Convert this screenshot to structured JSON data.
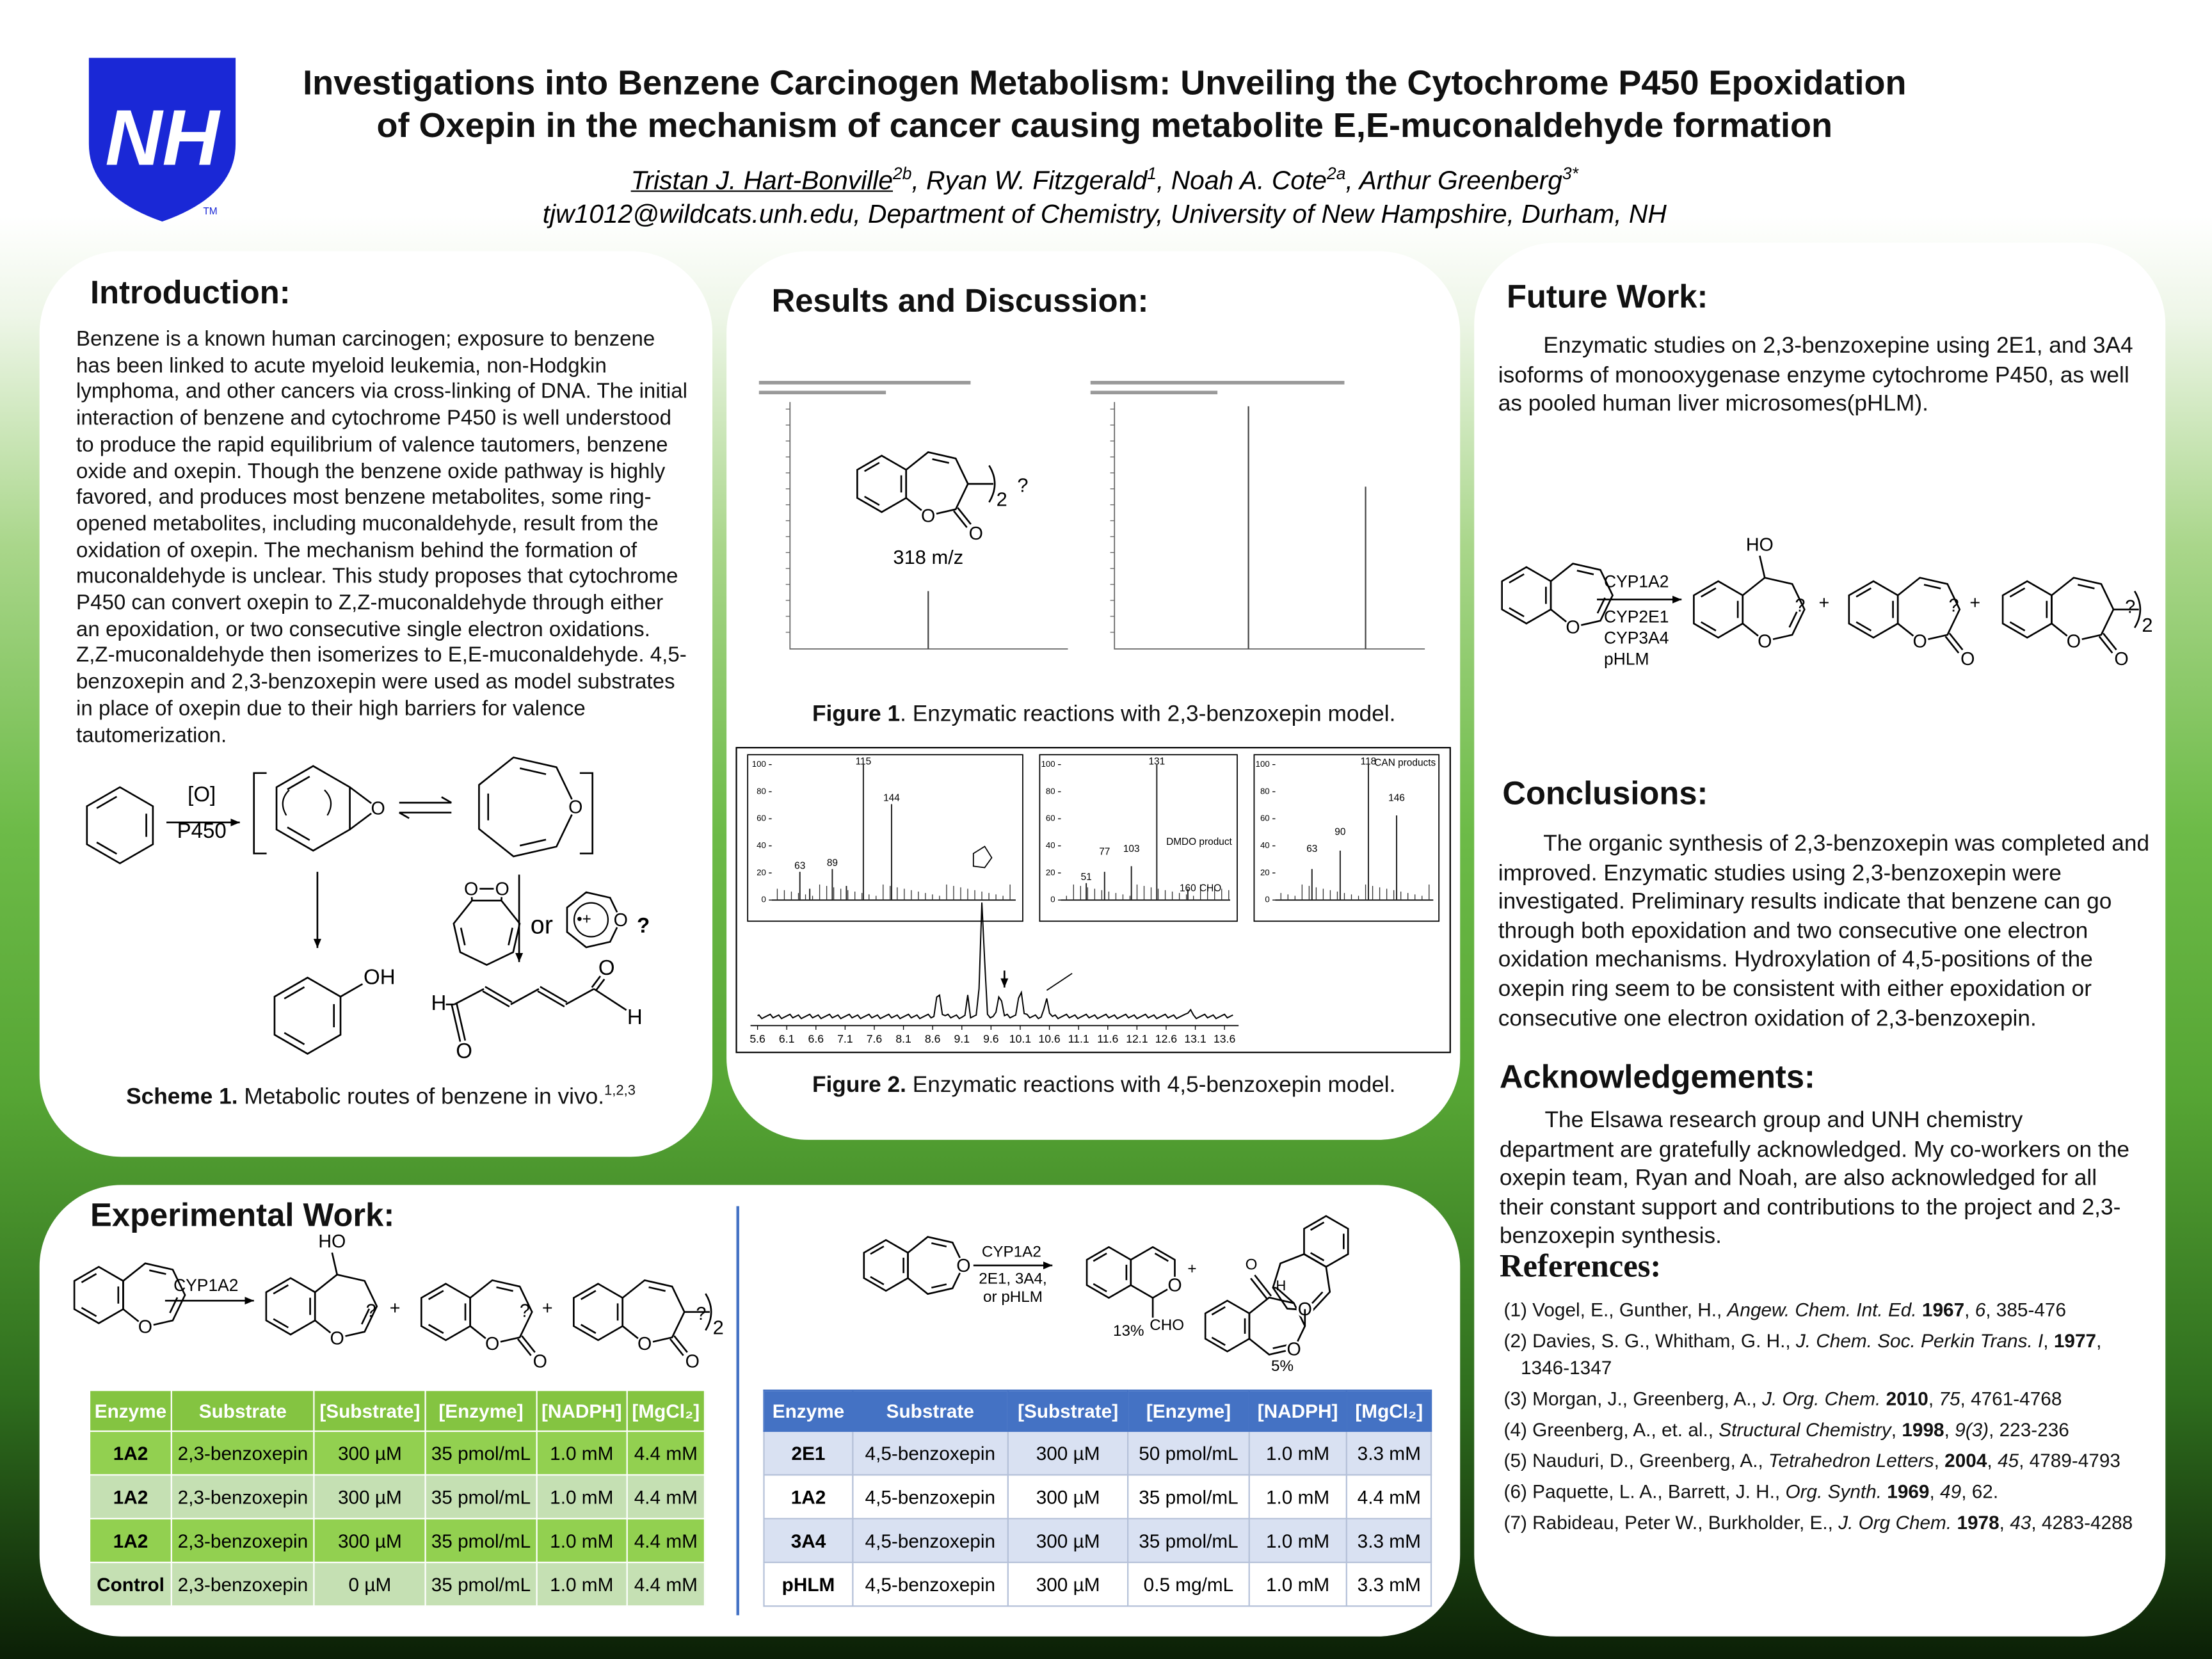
{
  "header": {
    "logo": "NH",
    "logo_tm": "TM",
    "title": [
      "Investigations into Benzene Carcinogen Metabolism: Unveiling the Cytochrome P450 Epoxidation",
      "of Oxepin in the mechanism of cancer causing metabolite E,E-muconaldehyde formation"
    ],
    "authors": [
      {
        "name": "Tristan J. Hart-Bonville",
        "sup": "2b"
      },
      {
        "name": ", Ryan W. Fitzgerald",
        "sup": "1"
      },
      {
        "name": ", Noah A. Cote",
        "sup": "2a"
      },
      {
        "name": ", Arthur Greenberg",
        "sup": "3*"
      }
    ],
    "affiliation": "tjw1012@wildcats.unh.edu, Department of Chemistry, University of New Hampshire, Durham, NH"
  },
  "introduction": {
    "heading": "Introduction:",
    "body": "Benzene is a known human carcinogen; exposure to benzene has been linked to acute myeloid leukemia, non-Hodgkin lymphoma, and other cancers via cross-linking of DNA. The initial interaction of benzene and cytochrome P450 is well understood to produce the rapid equilibrium of valence tautomers, benzene oxide and oxepin. Though the benzene oxide pathway is highly favored, and produces most benzene metabolites, some ring-opened metabolites, including muconaldehyde, result from the oxidation of oxepin. The mechanism behind the formation of muconaldehyde is unclear. This study proposes that cytochrome P450 can convert oxepin to Z,Z-muconaldehyde through either an epoxidation, or two consecutive single electron oxidations. Z,Z-muconaldehyde then isomerizes to E,E-muconaldehyde. 4,5-benzoxepin and 2,3-benzoxepin were used as model substrates in place of oxepin due to their high barriers for valence tautomerization.",
    "scheme": {
      "labels": [
        "[O]",
        "P450",
        "O",
        "O",
        "OH",
        "O",
        "O",
        "or",
        "•+",
        "O",
        "?",
        "H",
        "O",
        "O",
        "H"
      ]
    },
    "caption": {
      "label": "Scheme 1.",
      "text": " Metabolic routes of benzene in vivo.",
      "sup": "1,2,3"
    }
  },
  "results": {
    "heading": "Results and Discussion:",
    "figure1": {
      "labels": [
        "O",
        "O",
        "2",
        "?",
        "318 m/z"
      ],
      "caption": {
        "label": "Figure 1",
        "text": ". Enzymatic reactions with 2,3-benzoxepin model."
      }
    },
    "figure2": {
      "inset_yticks": [
        0,
        20,
        40,
        60,
        80,
        100
      ],
      "inset1_labels": [
        "115",
        "144",
        "63",
        "89"
      ],
      "inset2_labels": [
        "131",
        "51",
        "77",
        "103",
        "DMDO product",
        "160",
        "CHO"
      ],
      "inset3_labels": [
        "118",
        "CAN products",
        "63",
        "90",
        "146"
      ],
      "xlim": [
        5.6,
        13.6
      ],
      "xticks": [
        5.6,
        6.1,
        6.6,
        7.1,
        7.6,
        8.1,
        8.6,
        9.1,
        9.6,
        10.1,
        10.6,
        11.1,
        11.6,
        12.1,
        12.6,
        13.1,
        13.6
      ],
      "caption": {
        "label": "Figure 2.",
        "text": " Enzymatic reactions with 4,5-benzoxepin model."
      }
    }
  },
  "future_work": {
    "heading": "Future Work:",
    "body": "Enzymatic studies on 2,3-benzoxepine using 2E1, and 3A4 isoforms of monooxygenase enzyme cytochrome P450, as well as pooled human liver microsomes(pHLM).",
    "scheme": {
      "labels": [
        "O",
        "CYP1A2",
        "CYP2E1",
        "CYP3A4",
        "pHLM",
        "HO",
        "O",
        "?",
        "+",
        "O",
        "O",
        "?",
        "+",
        "O",
        "O",
        "2",
        "?"
      ]
    }
  },
  "conclusions": {
    "heading": "Conclusions:",
    "body": "The organic synthesis of 2,3-benzoxepin was completed and improved. Enzymatic studies using 2,3-benzoxepin were investigated. Preliminary results indicate that benzene can go through both epoxidation and two consecutive one electron oxidation mechanisms. Hydroxylation of 4,5-positions of the oxepin ring seem to be consistent with either epoxidation or consecutive one electron oxidation of 2,3-benzoxepin."
  },
  "acknowledgements": {
    "heading": "Acknowledgements:",
    "body": "The Elsawa research group and UNH chemistry department are gratefully acknowledged. My co-workers on the oxepin team, Ryan and Noah, are also acknowledged for all their constant support and contributions to the project and 2,3-benzoxepin synthesis."
  },
  "references": {
    "heading": "References:",
    "items": [
      [
        {
          "t": "(1) Vogel, E., Gunther, H., "
        },
        {
          "t": "Angew. Chem. Int. Ed.",
          "s": "i"
        },
        {
          "t": " "
        },
        {
          "t": "1967",
          "s": "b"
        },
        {
          "t": ", "
        },
        {
          "t": "6",
          "s": "i"
        },
        {
          "t": ", 385-476"
        }
      ],
      [
        {
          "t": "(2) Davies, S. G., Whitham, G. H., "
        },
        {
          "t": "J. Chem. Soc. Perkin Trans. I",
          "s": "i"
        },
        {
          "t": ", "
        },
        {
          "t": "1977",
          "s": "b"
        },
        {
          "t": ", 1346-1347"
        }
      ],
      [
        {
          "t": "(3) Morgan, J., Greenberg, A., "
        },
        {
          "t": "J. Org. Chem.",
          "s": "i"
        },
        {
          "t": " "
        },
        {
          "t": "2010",
          "s": "b"
        },
        {
          "t": ", "
        },
        {
          "t": "75",
          "s": "i"
        },
        {
          "t": ", 4761-4768"
        }
      ],
      [
        {
          "t": "(4) Greenberg, A., et. al., "
        },
        {
          "t": "Structural Chemistry",
          "s": "i"
        },
        {
          "t": ", "
        },
        {
          "t": "1998",
          "s": "b"
        },
        {
          "t": ", "
        },
        {
          "t": "9(3)",
          "s": "i"
        },
        {
          "t": ", 223-236"
        }
      ],
      [
        {
          "t": "(5) Nauduri, D., Greenberg, A., "
        },
        {
          "t": "Tetrahedron Letters",
          "s": "i"
        },
        {
          "t": ", "
        },
        {
          "t": "2004",
          "s": "b"
        },
        {
          "t": ", "
        },
        {
          "t": "45",
          "s": "i"
        },
        {
          "t": ", 4789-4793"
        }
      ],
      [
        {
          "t": "(6) Paquette, L. A., Barrett, J. H.,  "
        },
        {
          "t": "Org. Synth.",
          "s": "i"
        },
        {
          "t": " "
        },
        {
          "t": "1969",
          "s": "b"
        },
        {
          "t": ", "
        },
        {
          "t": "49",
          "s": "i"
        },
        {
          "t": ", 62."
        }
      ],
      [
        {
          "t": "(7) Rabideau, Peter W., Burkholder, E.,  "
        },
        {
          "t": "J. Org Chem.",
          "s": "i"
        },
        {
          "t": " "
        },
        {
          "t": "1978",
          "s": "b"
        },
        {
          "t": ", "
        },
        {
          "t": "43",
          "s": "i"
        },
        {
          "t": ", 4283-4288"
        }
      ]
    ]
  },
  "experimental": {
    "heading": "Experimental Work:",
    "scheme_left": {
      "labels": [
        "O",
        "CYP1A2",
        "HO",
        "O",
        "?",
        "+",
        "O",
        "O",
        "?",
        "+",
        "O",
        "O",
        "2",
        "?"
      ]
    },
    "scheme_right": {
      "labels": [
        "O",
        "CYP1A2",
        "2E1, 3A4,",
        "or pHLM",
        "O",
        "CHO",
        "13%",
        "+",
        "O",
        "H",
        "O",
        "O",
        "5%"
      ]
    },
    "table1": {
      "header": [
        "Enzyme",
        "Substrate",
        "[Substrate]",
        "[Enzyme]",
        "[NADPH]",
        "[MgCl₂]"
      ],
      "rows": [
        [
          "1A2",
          "2,3-benzoxepin",
          "300 µM",
          "35 pmol/mL",
          "1.0 mM",
          "4.4 mM"
        ],
        [
          "1A2",
          "2,3-benzoxepin",
          "300 µM",
          "35 pmol/mL",
          "1.0 mM",
          "4.4 mM"
        ],
        [
          "1A2",
          "2,3-benzoxepin",
          "300 µM",
          "35 pmol/mL",
          "1.0 mM",
          "4.4 mM"
        ],
        [
          "Control",
          "2,3-benzoxepin",
          "0 µM",
          "35 pmol/mL",
          "1.0 mM",
          "4.4 mM"
        ]
      ]
    },
    "table2": {
      "header": [
        "Enzyme",
        "Substrate",
        "[Substrate]",
        "[Enzyme]",
        "[NADPH]",
        "[MgCl₂]"
      ],
      "rows": [
        [
          "2E1",
          "4,5-benzoxepin",
          "300 µM",
          "50 pmol/mL",
          "1.0 mM",
          "3.3 mM"
        ],
        [
          "1A2",
          "4,5-benzoxepin",
          "300 µM",
          "35 pmol/mL",
          "1.0 mM",
          "4.4 mM"
        ],
        [
          "3A4",
          "4,5-benzoxepin",
          "300 µM",
          "35 pmol/mL",
          "1.0 mM",
          "3.3 mM"
        ],
        [
          "pHLM",
          "4,5-benzoxepin",
          "300 µM",
          "0.5 mg/mL",
          "1.0 mM",
          "3.3 mM"
        ]
      ]
    }
  }
}
